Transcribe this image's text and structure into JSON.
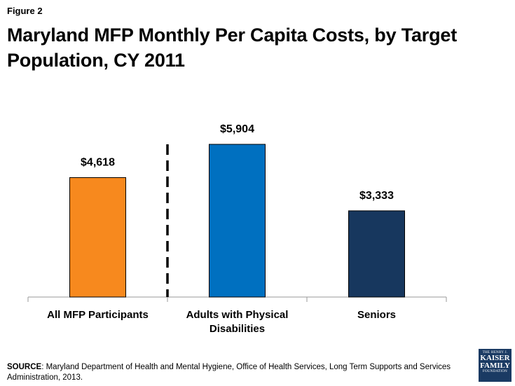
{
  "figure_label": "Figure 2",
  "title": "Maryland MFP Monthly Per Capita Costs, by Target Population, CY 2011",
  "source": {
    "label": "SOURCE",
    "text": ": Maryland Department of Health and Mental Hygiene, Office of Health Services, Long Term Supports and Services Administration, 2013."
  },
  "logo": {
    "line1": "THE HENRY J.",
    "line2": "KAISER",
    "line3": "FAMILY",
    "line4": "FOUNDATION"
  },
  "chart_data": {
    "type": "bar",
    "title": "Maryland MFP Monthly Per Capita Costs, by Target Population, CY 2011",
    "categories": [
      [
        "All MFP Participants"
      ],
      [
        "Adults with Physical",
        "Disabilities"
      ],
      [
        "Seniors"
      ]
    ],
    "values": [
      4618,
      5904,
      3333
    ],
    "data_labels": [
      "$4,618",
      "$5,904",
      "$3,333"
    ],
    "colors": [
      "#F7891E",
      "#0070C0",
      "#17375E"
    ],
    "xlabel": "",
    "ylabel": "",
    "ylim": [
      0,
      5904
    ],
    "grid": false,
    "divider_after_category": 0
  }
}
